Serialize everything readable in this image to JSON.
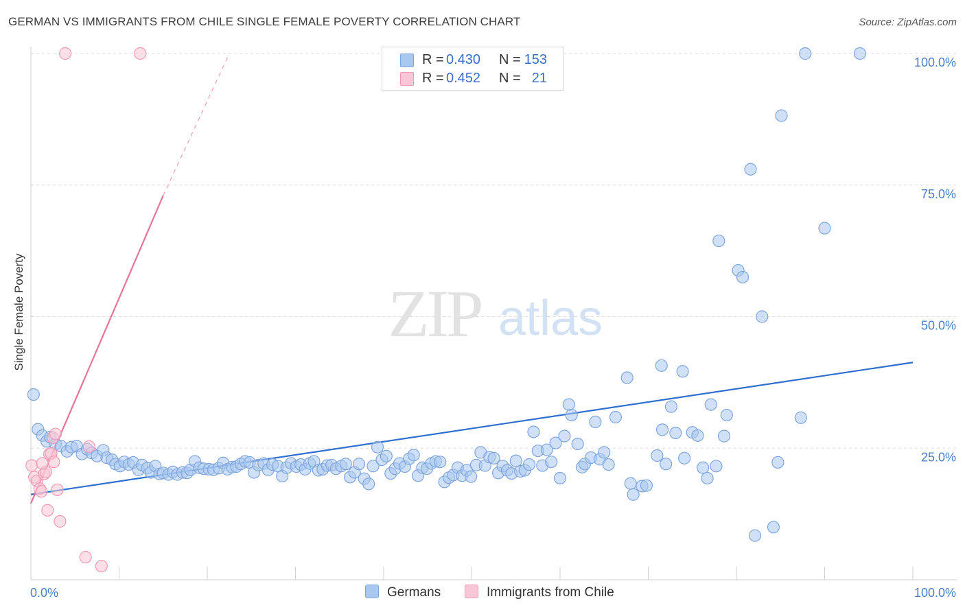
{
  "title": "GERMAN VS IMMIGRANTS FROM CHILE SINGLE FEMALE POVERTY CORRELATION CHART",
  "source": "Source: ZipAtlas.com",
  "watermark": {
    "zip": "ZIP",
    "atlas": "atlas"
  },
  "stats": {
    "r_label": "R =",
    "n_label": "N =",
    "rows": [
      {
        "r": "0.430",
        "n": "153",
        "color": "#a9c8f0",
        "border": "#7fa6dc"
      },
      {
        "r": "0.452",
        "n": "21",
        "color": "#f8c6d6",
        "border": "#ee9ab3"
      }
    ]
  },
  "legend": {
    "items": [
      {
        "label": "Germans",
        "color": "#a9c8f0",
        "border": "#7fa6dc"
      },
      {
        "label": "Immigrants from Chile",
        "color": "#f8c6d6",
        "border": "#ee9ab3"
      }
    ]
  },
  "chart_data": {
    "type": "scatter",
    "title": "GERMAN VS IMMIGRANTS FROM CHILE SINGLE FEMALE POVERTY CORRELATION CHART",
    "xlabel": "",
    "ylabel": "Single Female Poverty",
    "xlim": [
      0,
      100
    ],
    "ylim": [
      0,
      101
    ],
    "x_tick_labels": [
      "0.0%",
      "100.0%"
    ],
    "y_ticks": [
      25,
      50,
      75,
      100
    ],
    "y_tick_labels": [
      "25.0%",
      "50.0%",
      "75.0%",
      "100.0%"
    ],
    "grid": "horizontal dashed",
    "legend_position": "bottom",
    "series": [
      {
        "name": "Germans",
        "color": "#a9c8f0",
        "edge_color": "#7fa6dc",
        "trend": {
          "x": [
            0,
            100
          ],
          "y": [
            16.2,
            41.3
          ],
          "color": "#2f6fcf"
        },
        "points": [
          [
            0.3,
            35.2
          ],
          [
            0.8,
            28.6
          ],
          [
            1.3,
            27.4
          ],
          [
            1.8,
            26.3
          ],
          [
            2.2,
            27.1
          ],
          [
            2.8,
            25.8
          ],
          [
            3.4,
            25.4
          ],
          [
            4.1,
            24.4
          ],
          [
            4.6,
            25.2
          ],
          [
            5.2,
            25.4
          ],
          [
            5.8,
            23.9
          ],
          [
            6.4,
            24.8
          ],
          [
            6.9,
            24.1
          ],
          [
            7.5,
            23.5
          ],
          [
            8.2,
            24.6
          ],
          [
            8.6,
            23.2
          ],
          [
            9.2,
            22.8
          ],
          [
            9.6,
            22.0
          ],
          [
            10.1,
            21.6
          ],
          [
            10.6,
            22.4
          ],
          [
            11.1,
            21.9
          ],
          [
            11.6,
            22.3
          ],
          [
            12.2,
            20.9
          ],
          [
            12.6,
            21.8
          ],
          [
            13.2,
            21.2
          ],
          [
            13.6,
            20.4
          ],
          [
            14.1,
            21.6
          ],
          [
            14.6,
            20.1
          ],
          [
            15.0,
            20.3
          ],
          [
            15.6,
            20.0
          ],
          [
            16.1,
            20.5
          ],
          [
            16.6,
            20.0
          ],
          [
            17.2,
            20.4
          ],
          [
            17.7,
            20.3
          ],
          [
            18.1,
            20.9
          ],
          [
            18.6,
            22.5
          ],
          [
            19.1,
            21.3
          ],
          [
            19.6,
            21.1
          ],
          [
            20.2,
            21.0
          ],
          [
            20.7,
            20.9
          ],
          [
            21.3,
            21.2
          ],
          [
            21.8,
            22.2
          ],
          [
            22.3,
            21.0
          ],
          [
            22.8,
            21.4
          ],
          [
            23.3,
            21.5
          ],
          [
            23.8,
            22.0
          ],
          [
            24.3,
            22.5
          ],
          [
            24.8,
            22.3
          ],
          [
            25.3,
            20.4
          ],
          [
            25.8,
            21.8
          ],
          [
            26.4,
            22.1
          ],
          [
            26.9,
            20.9
          ],
          [
            27.4,
            21.9
          ],
          [
            28.0,
            21.6
          ],
          [
            28.5,
            19.7
          ],
          [
            29.0,
            21.3
          ],
          [
            29.5,
            22.1
          ],
          [
            30.1,
            21.5
          ],
          [
            30.6,
            21.9
          ],
          [
            31.1,
            21.0
          ],
          [
            31.6,
            22.1
          ],
          [
            32.1,
            22.5
          ],
          [
            32.6,
            20.8
          ],
          [
            33.1,
            21.0
          ],
          [
            33.6,
            21.7
          ],
          [
            34.1,
            21.8
          ],
          [
            34.6,
            21.1
          ],
          [
            35.2,
            21.6
          ],
          [
            35.7,
            22.0
          ],
          [
            36.2,
            19.5
          ],
          [
            36.7,
            20.4
          ],
          [
            37.2,
            22.0
          ],
          [
            37.8,
            19.2
          ],
          [
            38.3,
            18.2
          ],
          [
            38.8,
            21.6
          ],
          [
            39.3,
            25.2
          ],
          [
            39.8,
            22.8
          ],
          [
            40.3,
            23.5
          ],
          [
            40.8,
            20.2
          ],
          [
            41.3,
            21.1
          ],
          [
            41.8,
            22.1
          ],
          [
            42.4,
            21.5
          ],
          [
            42.9,
            23.0
          ],
          [
            43.4,
            23.7
          ],
          [
            43.9,
            19.8
          ],
          [
            44.4,
            21.3
          ],
          [
            44.9,
            21.1
          ],
          [
            45.4,
            22.1
          ],
          [
            45.9,
            22.5
          ],
          [
            46.4,
            22.4
          ],
          [
            46.9,
            18.6
          ],
          [
            47.4,
            19.4
          ],
          [
            47.9,
            19.9
          ],
          [
            48.4,
            21.3
          ],
          [
            48.9,
            19.8
          ],
          [
            49.4,
            20.8
          ],
          [
            49.9,
            19.6
          ],
          [
            50.5,
            21.8
          ],
          [
            51.0,
            24.2
          ],
          [
            51.5,
            21.7
          ],
          [
            52.0,
            23.3
          ],
          [
            52.5,
            23.1
          ],
          [
            53.0,
            20.3
          ],
          [
            53.5,
            21.6
          ],
          [
            54.0,
            20.8
          ],
          [
            54.5,
            20.2
          ],
          [
            55.0,
            22.6
          ],
          [
            55.5,
            20.6
          ],
          [
            56.0,
            20.8
          ],
          [
            56.5,
            21.9
          ],
          [
            57.0,
            28.1
          ],
          [
            57.5,
            24.5
          ],
          [
            58.0,
            21.7
          ],
          [
            58.5,
            24.7
          ],
          [
            59.0,
            22.4
          ],
          [
            59.5,
            26.0
          ],
          [
            60.0,
            19.3
          ],
          [
            60.5,
            27.3
          ],
          [
            61.0,
            33.3
          ],
          [
            61.3,
            31.3
          ],
          [
            62.0,
            25.8
          ],
          [
            62.5,
            21.4
          ],
          [
            62.8,
            22.0
          ],
          [
            63.5,
            23.2
          ],
          [
            64.0,
            30.0
          ],
          [
            64.5,
            22.9
          ],
          [
            65.0,
            24.2
          ],
          [
            65.5,
            21.9
          ],
          [
            66.3,
            30.9
          ],
          [
            67.6,
            38.4
          ],
          [
            68.0,
            18.3
          ],
          [
            68.3,
            16.2
          ],
          [
            69.3,
            17.8
          ],
          [
            69.8,
            17.9
          ],
          [
            71.0,
            23.6
          ],
          [
            72.0,
            22.0
          ],
          [
            71.6,
            28.5
          ],
          [
            71.5,
            40.7
          ],
          [
            72.6,
            32.9
          ],
          [
            73.1,
            27.9
          ],
          [
            73.9,
            39.6
          ],
          [
            74.1,
            23.1
          ],
          [
            75.0,
            28.0
          ],
          [
            75.6,
            27.4
          ],
          [
            76.2,
            21.3
          ],
          [
            76.7,
            19.3
          ],
          [
            77.1,
            33.3
          ],
          [
            77.7,
            21.6
          ],
          [
            78.0,
            64.4
          ],
          [
            78.6,
            27.3
          ],
          [
            78.9,
            31.3
          ],
          [
            80.2,
            58.8
          ],
          [
            80.7,
            57.5
          ],
          [
            81.6,
            78.0
          ],
          [
            82.1,
            8.4
          ],
          [
            82.9,
            50.0
          ],
          [
            84.2,
            10.0
          ],
          [
            84.7,
            22.3
          ],
          [
            85.1,
            88.2
          ],
          [
            87.3,
            30.8
          ],
          [
            87.8,
            100.0
          ],
          [
            90.0,
            66.8
          ],
          [
            94.0,
            100.0
          ]
        ]
      },
      {
        "name": "Immigrants from Chile",
        "color": "#f8c6d6",
        "edge_color": "#ee9ab3",
        "trend": {
          "x": [
            0,
            15
          ],
          "y": [
            14.5,
            73.0
          ],
          "extended_to": [
            22.5,
            100.0
          ],
          "color": "#e8739c"
        },
        "points": [
          [
            0.1,
            21.7
          ],
          [
            0.4,
            19.5
          ],
          [
            0.7,
            18.8
          ],
          [
            1.0,
            17.3
          ],
          [
            1.2,
            16.8
          ],
          [
            1.5,
            20.1
          ],
          [
            1.7,
            20.5
          ],
          [
            1.9,
            13.2
          ],
          [
            2.1,
            23.9
          ],
          [
            2.3,
            24.0
          ],
          [
            2.5,
            27.0
          ],
          [
            2.6,
            22.4
          ],
          [
            2.8,
            27.7
          ],
          [
            3.0,
            17.1
          ],
          [
            3.3,
            11.1
          ],
          [
            3.9,
            100.0
          ],
          [
            6.2,
            4.3
          ],
          [
            6.6,
            25.3
          ],
          [
            8.0,
            2.6
          ],
          [
            12.4,
            100.0
          ],
          [
            1.3,
            22.1
          ]
        ]
      }
    ]
  }
}
